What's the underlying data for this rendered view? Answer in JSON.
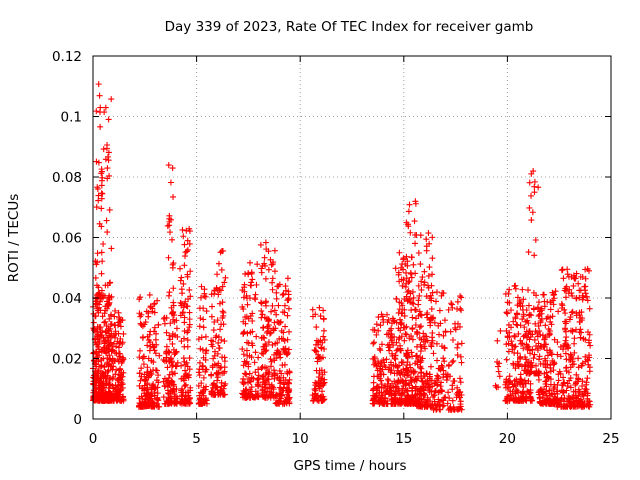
{
  "chart_data": {
    "type": "scatter",
    "title": "Day 339 of 2023, Rate Of TEC Index for receiver gamb",
    "xlabel": "GPS time / hours",
    "ylabel": "ROTI / TECUs",
    "xlim": [
      0,
      25
    ],
    "ylim": [
      0,
      0.12
    ],
    "x_ticks": [
      "0",
      "5",
      "10",
      "15",
      "20",
      "25"
    ],
    "y_ticks": [
      "0",
      "0.02",
      "0.04",
      "0.06",
      "0.08",
      "0.1",
      "0.12"
    ],
    "grid": true,
    "marker": "+",
    "color": "#ff0000",
    "clusters": [
      {
        "x_range": [
          0.0,
          0.8
        ],
        "y_range": [
          0.006,
          0.04
        ],
        "count": 320
      },
      {
        "x_range": [
          0.1,
          0.45
        ],
        "y_range": [
          0.04,
          0.114
        ],
        "count": 40
      },
      {
        "x_range": [
          0.4,
          0.9
        ],
        "y_range": [
          0.04,
          0.108
        ],
        "count": 35
      },
      {
        "x_range": [
          0.8,
          1.5
        ],
        "y_range": [
          0.006,
          0.036
        ],
        "count": 160
      },
      {
        "x_range": [
          2.2,
          3.2
        ],
        "y_range": [
          0.004,
          0.042
        ],
        "count": 180
      },
      {
        "x_range": [
          3.4,
          4.1
        ],
        "y_range": [
          0.005,
          0.035
        ],
        "count": 120
      },
      {
        "x_range": [
          3.6,
          3.9
        ],
        "y_range": [
          0.035,
          0.091
        ],
        "count": 25
      },
      {
        "x_range": [
          4.2,
          4.7
        ],
        "y_range": [
          0.005,
          0.064
        ],
        "count": 110
      },
      {
        "x_range": [
          5.1,
          5.5
        ],
        "y_range": [
          0.005,
          0.045
        ],
        "count": 70
      },
      {
        "x_range": [
          5.7,
          6.4
        ],
        "y_range": [
          0.008,
          0.057
        ],
        "count": 110
      },
      {
        "x_range": [
          7.2,
          8.0
        ],
        "y_range": [
          0.007,
          0.052
        ],
        "count": 130
      },
      {
        "x_range": [
          8.1,
          8.8
        ],
        "y_range": [
          0.007,
          0.059
        ],
        "count": 130
      },
      {
        "x_range": [
          8.8,
          9.5
        ],
        "y_range": [
          0.005,
          0.047
        ],
        "count": 130
      },
      {
        "x_range": [
          10.6,
          11.2
        ],
        "y_range": [
          0.006,
          0.037
        ],
        "count": 90
      },
      {
        "x_range": [
          13.5,
          14.6
        ],
        "y_range": [
          0.005,
          0.035
        ],
        "count": 190
      },
      {
        "x_range": [
          14.6,
          15.2
        ],
        "y_range": [
          0.005,
          0.056
        ],
        "count": 140
      },
      {
        "x_range": [
          15.1,
          15.6
        ],
        "y_range": [
          0.005,
          0.073
        ],
        "count": 130
      },
      {
        "x_range": [
          15.6,
          16.4
        ],
        "y_range": [
          0.004,
          0.062
        ],
        "count": 180
      },
      {
        "x_range": [
          16.4,
          17.8
        ],
        "y_range": [
          0.003,
          0.042
        ],
        "count": 150
      },
      {
        "x_range": [
          19.3,
          19.7
        ],
        "y_range": [
          0.01,
          0.035
        ],
        "count": 10
      },
      {
        "x_range": [
          19.9,
          21.2
        ],
        "y_range": [
          0.006,
          0.045
        ],
        "count": 220
      },
      {
        "x_range": [
          21.0,
          21.5
        ],
        "y_range": [
          0.015,
          0.083
        ],
        "count": 60
      },
      {
        "x_range": [
          21.5,
          22.3
        ],
        "y_range": [
          0.005,
          0.042
        ],
        "count": 160
      },
      {
        "x_range": [
          22.3,
          24.0
        ],
        "y_range": [
          0.004,
          0.05
        ],
        "count": 280
      }
    ]
  }
}
